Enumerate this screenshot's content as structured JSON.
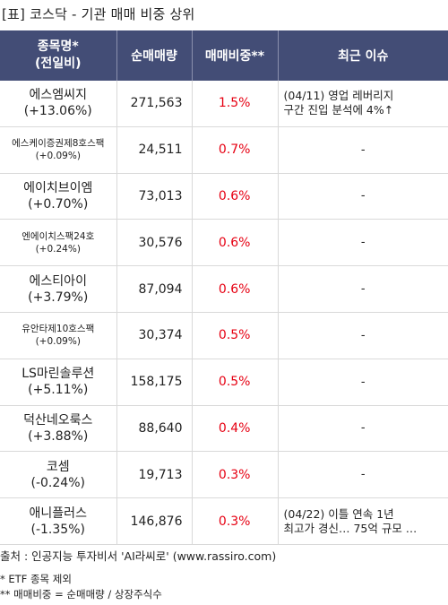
{
  "title": "[표] 코스닥 - 기관 매매 비중 상위",
  "header": {
    "name_line1": "종목명*",
    "name_line2": "(전일비)",
    "volume": "순매매량",
    "ratio": "매매비중**",
    "issue": "최근 이슈"
  },
  "rows": [
    {
      "name": "에스엠씨지",
      "change": "(+13.06%)",
      "volume": "271,563",
      "ratio": "1.5%",
      "issue1": "(04/11) 영업 레버리지",
      "issue2": "구간 진입 분석에 4%↑"
    },
    {
      "name": "에스케이증권제8호스팩",
      "change": "(+0.09%)",
      "volume": "24,511",
      "ratio": "0.7%",
      "issue1": "-",
      "issue2": ""
    },
    {
      "name": "에이치브이엠",
      "change": "(+0.70%)",
      "volume": "73,013",
      "ratio": "0.6%",
      "issue1": "-",
      "issue2": ""
    },
    {
      "name": "엔에이치스팩24호",
      "change": "(+0.24%)",
      "volume": "30,576",
      "ratio": "0.6%",
      "issue1": "-",
      "issue2": ""
    },
    {
      "name": "에스티아이",
      "change": "(+3.79%)",
      "volume": "87,094",
      "ratio": "0.6%",
      "issue1": "-",
      "issue2": ""
    },
    {
      "name": "유안타제10호스팩",
      "change": "(+0.09%)",
      "volume": "30,374",
      "ratio": "0.5%",
      "issue1": "-",
      "issue2": ""
    },
    {
      "name": "LS마린솔루션",
      "change": "(+5.11%)",
      "volume": "158,175",
      "ratio": "0.5%",
      "issue1": "-",
      "issue2": ""
    },
    {
      "name": "덕산네오룩스",
      "change": "(+3.88%)",
      "volume": "88,640",
      "ratio": "0.4%",
      "issue1": "-",
      "issue2": ""
    },
    {
      "name": "코셈",
      "change": "(-0.24%)",
      "volume": "19,713",
      "ratio": "0.3%",
      "issue1": "-",
      "issue2": ""
    },
    {
      "name": "애니플러스",
      "change": "(-1.35%)",
      "volume": "146,876",
      "ratio": "0.3%",
      "issue1": "(04/22) 이틀 연속 1년",
      "issue2": "최고가 경신… 75억 규모 …"
    }
  ],
  "footer": {
    "source": "출처 : 인공지능 투자비서 'AI라씨로' (www.rassiro.com)",
    "note1": "* ETF 종목 제외",
    "note2": "** 매매비중 = 순매매량 / 상장주식수"
  },
  "colors": {
    "header_bg": "#434d76",
    "header_text": "#ffffff",
    "ratio_text": "#e60012"
  }
}
